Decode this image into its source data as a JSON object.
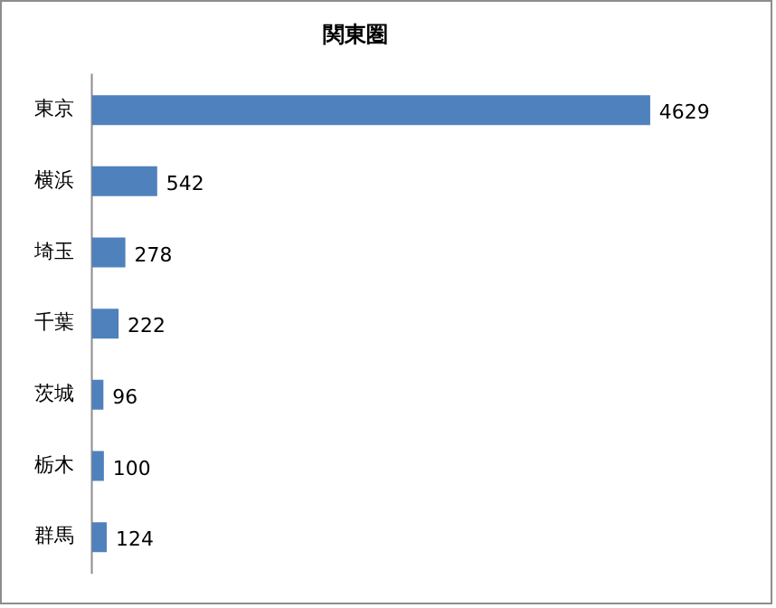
{
  "chart_data": {
    "type": "bar",
    "orientation": "horizontal",
    "title": "関東圏",
    "categories": [
      "東京",
      "横浜",
      "埼玉",
      "千葉",
      "茨城",
      "栃木",
      "群馬"
    ],
    "values": [
      4629,
      542,
      278,
      222,
      96,
      100,
      124
    ],
    "color": "#4f81bd",
    "data_labels": true,
    "tick_labels": "y"
  }
}
